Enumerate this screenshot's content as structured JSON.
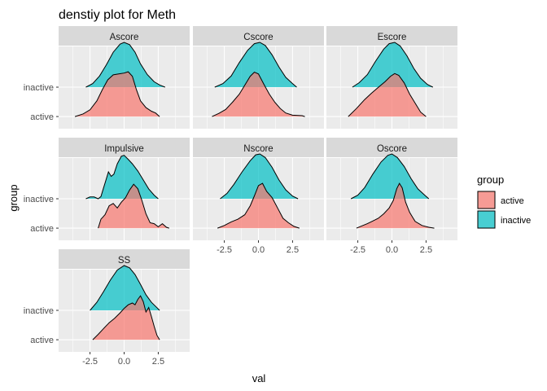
{
  "chart_data": {
    "type": "ridgeline-density",
    "title": "denstiy plot for Meth",
    "xlabel": "val",
    "ylabel": "group",
    "x_ticks": [
      -2.5,
      0.0,
      2.5
    ],
    "x_tick_labels": [
      "-2.5",
      "0.0",
      "2.5"
    ],
    "xlim": [
      -4.8,
      4.8
    ],
    "y_categories": [
      "active",
      "inactive"
    ],
    "legend": {
      "title": "group",
      "position": "right",
      "entries": [
        {
          "label": "active",
          "color": "#F8766D"
        },
        {
          "label": "inactive",
          "color": "#00BFC4"
        }
      ]
    },
    "colors": {
      "active": "#F8766D",
      "inactive": "#00BFC4"
    },
    "fill_alpha": 0.7,
    "grid": true,
    "facets": [
      {
        "name": "Ascore",
        "series": [
          {
            "group": "active",
            "points": [
              [
                -3.6,
                0.0
              ],
              [
                -3.0,
                0.06
              ],
              [
                -2.5,
                0.15
              ],
              [
                -2.0,
                0.35
              ],
              [
                -1.6,
                0.6
              ],
              [
                -1.2,
                0.82
              ],
              [
                -0.8,
                0.93
              ],
              [
                -0.4,
                0.95
              ],
              [
                0.0,
                0.97
              ],
              [
                0.3,
                1.0
              ],
              [
                0.6,
                0.9
              ],
              [
                0.9,
                0.6
              ],
              [
                1.2,
                0.35
              ],
              [
                1.6,
                0.2
              ],
              [
                2.0,
                0.12
              ],
              [
                2.3,
                0.08
              ],
              [
                2.6,
                0.0
              ]
            ]
          },
          {
            "group": "inactive",
            "points": [
              [
                -2.8,
                0.0
              ],
              [
                -2.3,
                0.08
              ],
              [
                -1.8,
                0.25
              ],
              [
                -1.3,
                0.5
              ],
              [
                -0.8,
                0.78
              ],
              [
                -0.3,
                0.96
              ],
              [
                0.0,
                1.0
              ],
              [
                0.4,
                0.95
              ],
              [
                0.8,
                0.78
              ],
              [
                1.2,
                0.52
              ],
              [
                1.7,
                0.28
              ],
              [
                2.2,
                0.12
              ],
              [
                2.6,
                0.05
              ],
              [
                3.0,
                0.0
              ]
            ]
          }
        ]
      },
      {
        "name": "Cscore",
        "series": [
          {
            "group": "active",
            "points": [
              [
                -3.4,
                0.0
              ],
              [
                -2.9,
                0.07
              ],
              [
                -2.4,
                0.16
              ],
              [
                -1.9,
                0.32
              ],
              [
                -1.4,
                0.5
              ],
              [
                -1.0,
                0.7
              ],
              [
                -0.6,
                0.9
              ],
              [
                -0.3,
                0.99
              ],
              [
                0.0,
                0.95
              ],
              [
                0.4,
                0.72
              ],
              [
                0.8,
                0.5
              ],
              [
                1.2,
                0.32
              ],
              [
                1.6,
                0.18
              ],
              [
                2.0,
                0.08
              ],
              [
                2.5,
                0.03
              ],
              [
                3.2,
                0.02
              ],
              [
                3.4,
                0.0
              ]
            ]
          },
          {
            "group": "inactive",
            "points": [
              [
                -3.2,
                0.0
              ],
              [
                -2.6,
                0.08
              ],
              [
                -2.0,
                0.25
              ],
              [
                -1.4,
                0.55
              ],
              [
                -0.8,
                0.82
              ],
              [
                -0.3,
                0.97
              ],
              [
                0.1,
                1.0
              ],
              [
                0.5,
                0.93
              ],
              [
                1.0,
                0.72
              ],
              [
                1.5,
                0.45
              ],
              [
                2.0,
                0.22
              ],
              [
                2.5,
                0.08
              ],
              [
                2.8,
                0.0
              ]
            ]
          }
        ]
      },
      {
        "name": "Escore",
        "series": [
          {
            "group": "active",
            "points": [
              [
                -3.2,
                0.0
              ],
              [
                -2.6,
                0.18
              ],
              [
                -2.0,
                0.38
              ],
              [
                -1.5,
                0.52
              ],
              [
                -1.0,
                0.65
              ],
              [
                -0.5,
                0.78
              ],
              [
                -0.1,
                0.9
              ],
              [
                0.2,
                0.96
              ],
              [
                0.5,
                0.92
              ],
              [
                0.9,
                0.75
              ],
              [
                1.3,
                0.5
              ],
              [
                1.7,
                0.3
              ],
              [
                2.1,
                0.1
              ],
              [
                2.5,
                0.0
              ]
            ]
          },
          {
            "group": "inactive",
            "points": [
              [
                -2.9,
                0.0
              ],
              [
                -2.4,
                0.1
              ],
              [
                -1.8,
                0.28
              ],
              [
                -1.2,
                0.58
              ],
              [
                -0.6,
                0.85
              ],
              [
                -0.2,
                0.97
              ],
              [
                0.2,
                1.0
              ],
              [
                0.6,
                0.92
              ],
              [
                1.1,
                0.7
              ],
              [
                1.6,
                0.42
              ],
              [
                2.1,
                0.2
              ],
              [
                2.6,
                0.06
              ],
              [
                3.0,
                0.0
              ]
            ]
          }
        ]
      },
      {
        "name": "Impulsive",
        "series": [
          {
            "group": "active",
            "points": [
              [
                -1.9,
                0.0
              ],
              [
                -1.7,
                0.2
              ],
              [
                -1.4,
                0.3
              ],
              [
                -1.1,
                0.5
              ],
              [
                -0.8,
                0.55
              ],
              [
                -0.5,
                0.45
              ],
              [
                -0.2,
                0.58
              ],
              [
                0.1,
                0.68
              ],
              [
                0.4,
                0.85
              ],
              [
                0.7,
                0.98
              ],
              [
                1.0,
                0.88
              ],
              [
                1.3,
                0.62
              ],
              [
                1.6,
                0.32
              ],
              [
                1.9,
                0.12
              ],
              [
                2.2,
                0.1
              ],
              [
                2.5,
                0.03
              ],
              [
                2.8,
                0.1
              ],
              [
                3.1,
                0.02
              ],
              [
                3.3,
                0.0
              ]
            ]
          },
          {
            "group": "inactive",
            "points": [
              [
                -2.8,
                0.0
              ],
              [
                -2.5,
                0.04
              ],
              [
                -2.2,
                0.04
              ],
              [
                -1.9,
                0.0
              ],
              [
                -1.7,
                0.05
              ],
              [
                -1.5,
                0.25
              ],
              [
                -1.3,
                0.45
              ],
              [
                -1.15,
                0.6
              ],
              [
                -0.95,
                0.5
              ],
              [
                -0.75,
                0.55
              ],
              [
                -0.5,
                0.78
              ],
              [
                -0.2,
                0.95
              ],
              [
                0.0,
                0.97
              ],
              [
                0.3,
                0.88
              ],
              [
                0.6,
                0.78
              ],
              [
                1.0,
                0.62
              ],
              [
                1.4,
                0.42
              ],
              [
                1.8,
                0.22
              ],
              [
                2.2,
                0.08
              ],
              [
                2.5,
                0.0
              ]
            ]
          }
        ]
      },
      {
        "name": "Nscore",
        "series": [
          {
            "group": "active",
            "points": [
              [
                -3.0,
                0.0
              ],
              [
                -2.5,
                0.06
              ],
              [
                -2.0,
                0.14
              ],
              [
                -1.5,
                0.2
              ],
              [
                -1.0,
                0.3
              ],
              [
                -0.6,
                0.5
              ],
              [
                -0.3,
                0.72
              ],
              [
                0.0,
                0.95
              ],
              [
                0.3,
                1.0
              ],
              [
                0.6,
                0.82
              ],
              [
                1.0,
                0.68
              ],
              [
                1.4,
                0.45
              ],
              [
                1.8,
                0.22
              ],
              [
                2.2,
                0.12
              ],
              [
                2.6,
                0.04
              ],
              [
                3.0,
                0.0
              ]
            ]
          },
          {
            "group": "inactive",
            "points": [
              [
                -2.8,
                0.0
              ],
              [
                -2.3,
                0.12
              ],
              [
                -1.8,
                0.32
              ],
              [
                -1.2,
                0.6
              ],
              [
                -0.6,
                0.85
              ],
              [
                -0.2,
                0.98
              ],
              [
                0.1,
                1.0
              ],
              [
                0.5,
                0.92
              ],
              [
                1.0,
                0.7
              ],
              [
                1.5,
                0.42
              ],
              [
                2.0,
                0.2
              ],
              [
                2.5,
                0.06
              ],
              [
                2.9,
                0.0
              ]
            ]
          }
        ]
      },
      {
        "name": "Oscore",
        "series": [
          {
            "group": "active",
            "points": [
              [
                -2.6,
                0.0
              ],
              [
                -2.2,
                0.05
              ],
              [
                -1.8,
                0.1
              ],
              [
                -1.4,
                0.16
              ],
              [
                -1.0,
                0.22
              ],
              [
                -0.6,
                0.32
              ],
              [
                -0.2,
                0.45
              ],
              [
                0.1,
                0.62
              ],
              [
                0.35,
                0.88
              ],
              [
                0.55,
                1.0
              ],
              [
                0.75,
                0.9
              ],
              [
                1.0,
                0.58
              ],
              [
                1.3,
                0.35
              ],
              [
                1.7,
                0.15
              ],
              [
                2.2,
                0.06
              ],
              [
                2.7,
                0.02
              ],
              [
                3.1,
                0.0
              ]
            ]
          },
          {
            "group": "inactive",
            "points": [
              [
                -3.0,
                0.0
              ],
              [
                -2.5,
                0.08
              ],
              [
                -2.0,
                0.25
              ],
              [
                -1.4,
                0.55
              ],
              [
                -0.8,
                0.82
              ],
              [
                -0.3,
                0.97
              ],
              [
                0.0,
                1.0
              ],
              [
                0.4,
                0.92
              ],
              [
                0.9,
                0.72
              ],
              [
                1.4,
                0.45
              ],
              [
                1.9,
                0.22
              ],
              [
                2.4,
                0.08
              ],
              [
                2.7,
                0.0
              ]
            ]
          }
        ]
      },
      {
        "name": "SS",
        "series": [
          {
            "group": "active",
            "points": [
              [
                -2.3,
                0.0
              ],
              [
                -1.9,
                0.12
              ],
              [
                -1.5,
                0.25
              ],
              [
                -1.1,
                0.38
              ],
              [
                -0.7,
                0.48
              ],
              [
                -0.3,
                0.6
              ],
              [
                0.0,
                0.7
              ],
              [
                0.3,
                0.78
              ],
              [
                0.6,
                0.82
              ],
              [
                0.8,
                0.78
              ],
              [
                1.0,
                0.9
              ],
              [
                1.2,
                0.98
              ],
              [
                1.4,
                0.85
              ],
              [
                1.6,
                0.62
              ],
              [
                1.8,
                0.72
              ],
              [
                2.0,
                0.52
              ],
              [
                2.2,
                0.3
              ],
              [
                2.4,
                0.1
              ],
              [
                2.6,
                0.0
              ]
            ]
          },
          {
            "group": "inactive",
            "points": [
              [
                -2.5,
                0.0
              ],
              [
                -2.0,
                0.18
              ],
              [
                -1.5,
                0.42
              ],
              [
                -1.0,
                0.68
              ],
              [
                -0.5,
                0.9
              ],
              [
                0.0,
                1.0
              ],
              [
                0.4,
                0.95
              ],
              [
                0.8,
                0.8
              ],
              [
                1.2,
                0.58
              ],
              [
                1.6,
                0.35
              ],
              [
                2.0,
                0.18
              ],
              [
                2.4,
                0.06
              ],
              [
                2.6,
                0.0
              ]
            ]
          }
        ]
      }
    ]
  }
}
